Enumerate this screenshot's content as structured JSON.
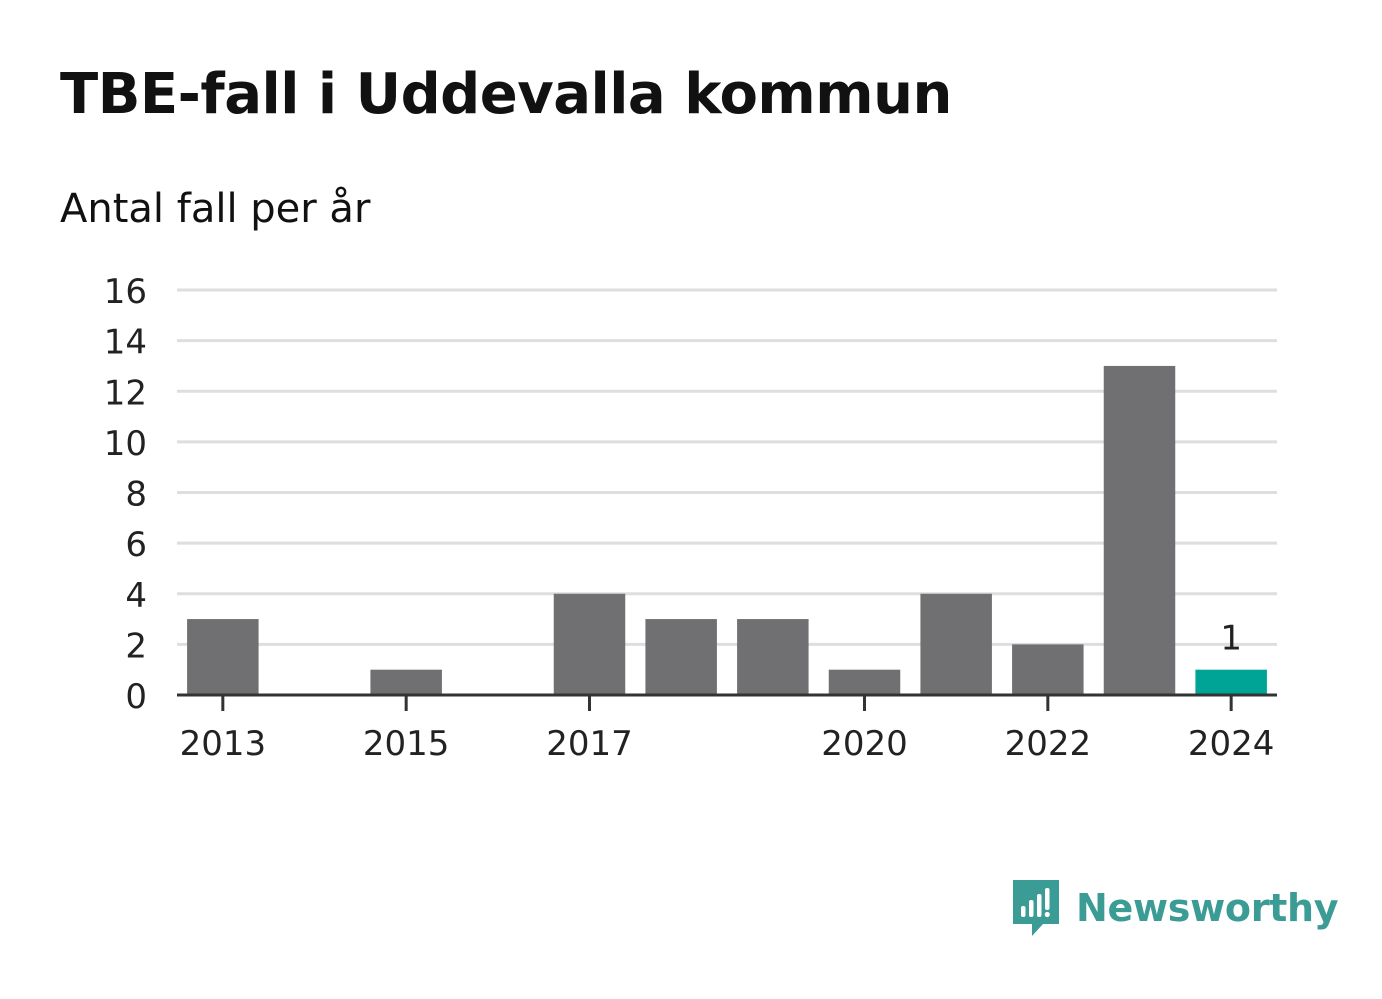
{
  "title": "TBE-fall i Uddevalla kommun",
  "subtitle": "Antal fall per år",
  "brand": {
    "name": "Newsworthy",
    "icon": "newsworthy-logo-icon",
    "color": "#3b9c95"
  },
  "colors": {
    "bar": "#707073",
    "highlight": "#00a497",
    "grid": "#dedede",
    "axis": "#333333"
  },
  "chart_data": {
    "type": "bar",
    "categories": [
      "2013",
      "2014",
      "2015",
      "2016",
      "2017",
      "2018",
      "2019",
      "2020",
      "2021",
      "2022",
      "2023",
      "2024"
    ],
    "values": [
      3,
      0,
      1,
      0,
      4,
      3,
      3,
      1,
      4,
      2,
      13,
      1
    ],
    "x_tick_labels": [
      "2013",
      "2015",
      "2017",
      "2020",
      "2022",
      "2024"
    ],
    "y_ticks": [
      0,
      2,
      4,
      6,
      8,
      10,
      12,
      14,
      16
    ],
    "ylim": [
      0,
      16
    ],
    "highlight_category": "2024",
    "data_labels": [
      {
        "category": "2024",
        "text": "1"
      }
    ],
    "grid": true,
    "legend": "none"
  }
}
